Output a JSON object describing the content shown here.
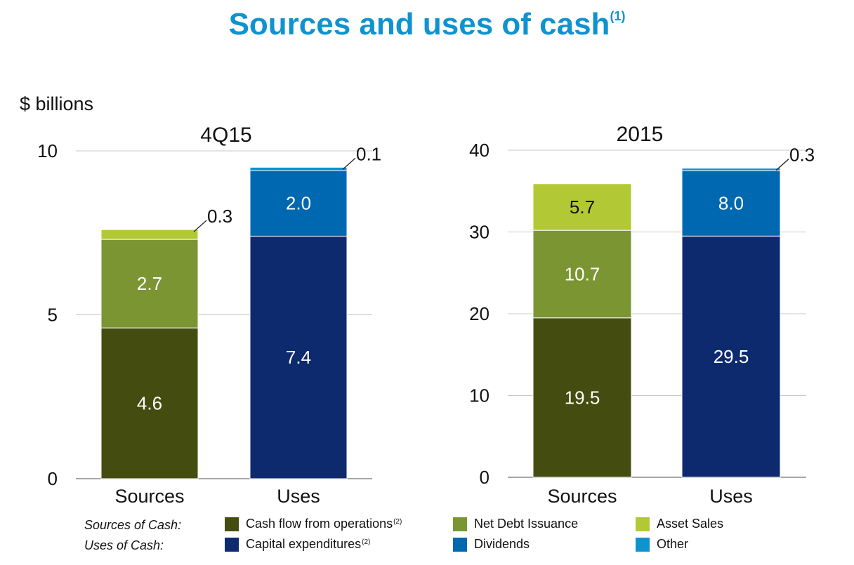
{
  "title": "Sources and uses of cash",
  "title_footnote": "(1)",
  "units_label": "$ billions",
  "chart_data": [
    {
      "type": "bar",
      "stacked": true,
      "title": "4Q15",
      "categories": [
        "Sources",
        "Uses"
      ],
      "ylim": [
        0,
        10
      ],
      "yticks": [
        "0",
        "5",
        "10"
      ],
      "grid": true,
      "series": [
        {
          "name": "Cash flow from operations",
          "values": [
            4.6,
            0
          ],
          "labels": [
            "4.6",
            ""
          ],
          "color": "#454c10"
        },
        {
          "name": "Net Debt Issuance",
          "values": [
            2.7,
            0
          ],
          "labels": [
            "2.7",
            ""
          ],
          "color": "#7a9532"
        },
        {
          "name": "Asset Sales",
          "values": [
            0.3,
            0
          ],
          "labels": [
            "0.3",
            ""
          ],
          "color": "#b2c935",
          "callout": true
        },
        {
          "name": "Capital expenditures",
          "values": [
            0,
            7.4
          ],
          "labels": [
            "",
            "7.4"
          ],
          "color": "#0d2a6e"
        },
        {
          "name": "Dividends",
          "values": [
            0,
            2.0
          ],
          "labels": [
            "",
            "2.0"
          ],
          "color": "#0067b1"
        },
        {
          "name": "Other",
          "values": [
            0,
            0.1
          ],
          "labels": [
            "",
            "0.1"
          ],
          "color": "#0f93cf",
          "callout": true
        }
      ]
    },
    {
      "type": "bar",
      "stacked": true,
      "title": "2015",
      "categories": [
        "Sources",
        "Uses"
      ],
      "ylim": [
        0,
        40
      ],
      "yticks": [
        "0",
        "10",
        "20",
        "30",
        "40"
      ],
      "grid": true,
      "series": [
        {
          "name": "Cash flow from operations",
          "values": [
            19.5,
            0
          ],
          "labels": [
            "19.5",
            ""
          ],
          "color": "#454c10"
        },
        {
          "name": "Net Debt Issuance",
          "values": [
            10.7,
            0
          ],
          "labels": [
            "10.7",
            ""
          ],
          "color": "#7a9532"
        },
        {
          "name": "Asset Sales",
          "values": [
            5.7,
            0
          ],
          "labels": [
            "5.7",
            ""
          ],
          "color": "#b2c935",
          "label_dark": true
        },
        {
          "name": "Capital expenditures",
          "values": [
            0,
            29.5
          ],
          "labels": [
            "",
            "29.5"
          ],
          "color": "#0d2a6e"
        },
        {
          "name": "Dividends",
          "values": [
            0,
            8.0
          ],
          "labels": [
            "",
            "8.0"
          ],
          "color": "#0067b1"
        },
        {
          "name": "Other",
          "values": [
            0,
            0.3
          ],
          "labels": [
            "",
            "0.3"
          ],
          "color": "#0f93cf",
          "callout": true
        }
      ]
    }
  ],
  "legend": {
    "sources_label": "Sources of Cash:",
    "uses_label": "Uses of Cash:",
    "items": [
      {
        "label": "Cash flow from operations",
        "sup": "(2)",
        "color": "#454c10",
        "icon": "square-swatch"
      },
      {
        "label": "Net Debt Issuance",
        "sup": "",
        "color": "#7a9532",
        "icon": "square-swatch"
      },
      {
        "label": "Asset Sales",
        "sup": "",
        "color": "#b2c935",
        "icon": "square-swatch"
      },
      {
        "label": "Capital expenditures",
        "sup": "(2)",
        "color": "#0d2a6e",
        "icon": "square-swatch"
      },
      {
        "label": "Dividends",
        "sup": "",
        "color": "#0067b1",
        "icon": "square-swatch"
      },
      {
        "label": "Other",
        "sup": "",
        "color": "#0f93cf",
        "icon": "square-swatch"
      }
    ]
  }
}
